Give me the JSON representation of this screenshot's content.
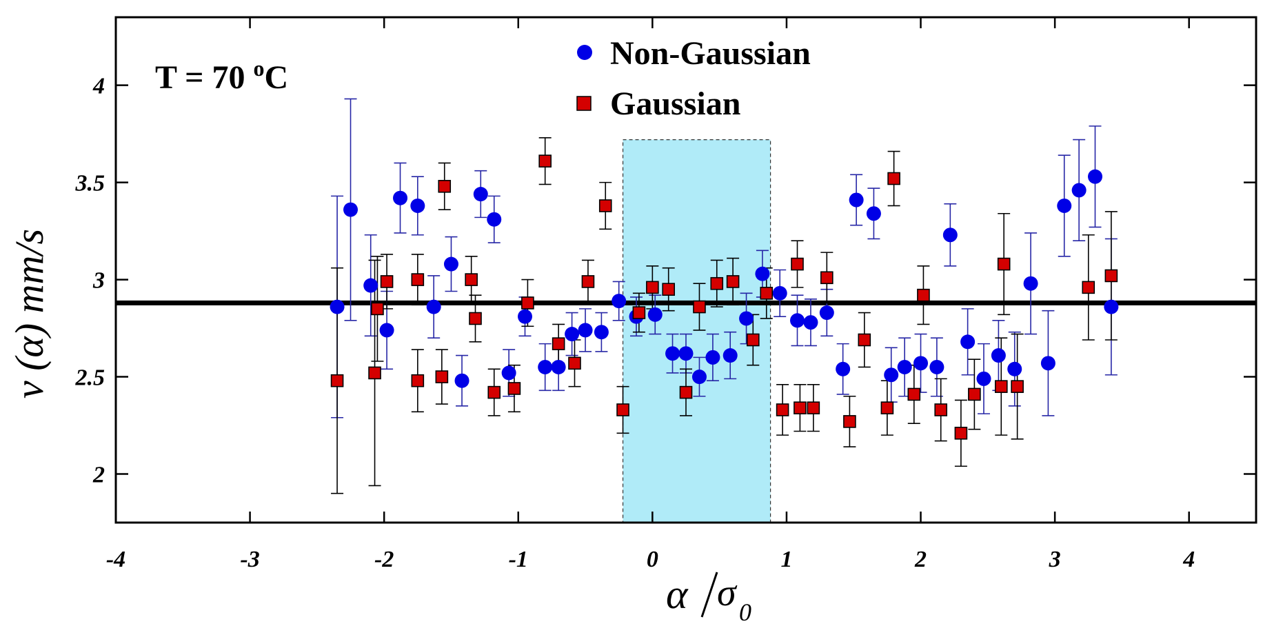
{
  "chart_data": {
    "type": "scatter",
    "title": "",
    "annotation": {
      "prefix": "T = 70 ",
      "sup": "o",
      "suffix": "C"
    },
    "xlabel": {
      "num": "α",
      "den": "σ",
      "den_sub": "0"
    },
    "ylabel": "v (α) mm/s",
    "xlim": [
      -4,
      4.5
    ],
    "ylim": [
      1.75,
      4.35
    ],
    "xticks": [
      -4,
      -3,
      -2,
      -1,
      0,
      1,
      2,
      3,
      4
    ],
    "xtick_labels": [
      "-4",
      "-3",
      "-2",
      "-1",
      "0",
      "1",
      "2",
      "3",
      "4"
    ],
    "yticks": [
      2,
      2.5,
      3,
      3.5,
      4
    ],
    "ytick_labels": [
      "2",
      "2.5",
      "3",
      "3.5",
      "4"
    ],
    "reference_line": {
      "y": 2.88
    },
    "shaded_region": {
      "x0": -0.22,
      "x1": 0.88,
      "y_top": 3.72,
      "color": "#b0ebf8"
    },
    "legend": [
      {
        "label": "Non-Gaussian",
        "marker": "circle",
        "color": "#0000e6"
      },
      {
        "label": "Gaussian",
        "marker": "square",
        "color": "#d40000"
      }
    ],
    "series": [
      {
        "name": "Non-Gaussian",
        "marker": "circle",
        "color": "#0000e6",
        "errcolor": "#2626a6",
        "points": [
          [
            -2.35,
            2.86,
            0.57
          ],
          [
            -2.25,
            3.36,
            0.57
          ],
          [
            -2.1,
            2.97,
            0.26
          ],
          [
            -1.98,
            2.74,
            0.2
          ],
          [
            -1.88,
            3.42,
            0.18
          ],
          [
            -1.75,
            3.38,
            0.15
          ],
          [
            -1.63,
            2.86,
            0.16
          ],
          [
            -1.5,
            3.08,
            0.14
          ],
          [
            -1.42,
            2.48,
            0.13
          ],
          [
            -1.28,
            3.44,
            0.12
          ],
          [
            -1.18,
            3.31,
            0.12
          ],
          [
            -1.07,
            2.52,
            0.12
          ],
          [
            -0.95,
            2.81,
            0.1
          ],
          [
            -0.8,
            2.55,
            0.12
          ],
          [
            -0.7,
            2.55,
            0.12
          ],
          [
            -0.6,
            2.72,
            0.11
          ],
          [
            -0.5,
            2.74,
            0.11
          ],
          [
            -0.38,
            2.73,
            0.1
          ],
          [
            -0.25,
            2.89,
            0.1
          ],
          [
            -0.12,
            2.81,
            0.1
          ],
          [
            0.02,
            2.82,
            0.1
          ],
          [
            0.15,
            2.62,
            0.1
          ],
          [
            0.25,
            2.62,
            0.1
          ],
          [
            0.35,
            2.5,
            0.1
          ],
          [
            0.45,
            2.6,
            0.12
          ],
          [
            0.58,
            2.61,
            0.12
          ],
          [
            0.7,
            2.8,
            0.13
          ],
          [
            0.82,
            3.03,
            0.12
          ],
          [
            0.95,
            2.93,
            0.12
          ],
          [
            1.08,
            2.79,
            0.13
          ],
          [
            1.18,
            2.78,
            0.12
          ],
          [
            1.3,
            2.83,
            0.12
          ],
          [
            1.42,
            2.54,
            0.13
          ],
          [
            1.52,
            3.41,
            0.13
          ],
          [
            1.65,
            3.34,
            0.13
          ],
          [
            1.78,
            2.51,
            0.14
          ],
          [
            1.88,
            2.55,
            0.15
          ],
          [
            2.0,
            2.57,
            0.15
          ],
          [
            2.12,
            2.55,
            0.15
          ],
          [
            2.22,
            3.23,
            0.16
          ],
          [
            2.35,
            2.68,
            0.17
          ],
          [
            2.47,
            2.49,
            0.18
          ],
          [
            2.58,
            2.61,
            0.18
          ],
          [
            2.7,
            2.54,
            0.19
          ],
          [
            2.82,
            2.98,
            0.26
          ],
          [
            2.95,
            2.57,
            0.27
          ],
          [
            3.07,
            3.38,
            0.26
          ],
          [
            3.18,
            3.46,
            0.26
          ],
          [
            3.3,
            3.53,
            0.26
          ],
          [
            3.42,
            2.86,
            0.35
          ]
        ]
      },
      {
        "name": "Gaussian",
        "marker": "square",
        "color": "#d40000",
        "errcolor": "#000000",
        "points": [
          [
            -2.35,
            2.48,
            0.58
          ],
          [
            -2.05,
            2.85,
            0.27
          ],
          [
            -2.07,
            2.52,
            0.58
          ],
          [
            -1.98,
            2.99,
            0.14
          ],
          [
            -1.75,
            3.0,
            0.13
          ],
          [
            -1.75,
            2.48,
            0.16
          ],
          [
            -1.57,
            2.5,
            0.14
          ],
          [
            -1.55,
            3.48,
            0.12
          ],
          [
            -1.35,
            3.0,
            0.12
          ],
          [
            -1.32,
            2.8,
            0.12
          ],
          [
            -1.18,
            2.42,
            0.12
          ],
          [
            -1.03,
            2.44,
            0.12
          ],
          [
            -0.93,
            2.88,
            0.12
          ],
          [
            -0.8,
            3.61,
            0.12
          ],
          [
            -0.7,
            2.67,
            0.1
          ],
          [
            -0.58,
            2.57,
            0.12
          ],
          [
            -0.48,
            2.99,
            0.11
          ],
          [
            -0.35,
            3.38,
            0.12
          ],
          [
            -0.22,
            2.33,
            0.12
          ],
          [
            -0.1,
            2.83,
            0.1
          ],
          [
            0.0,
            2.96,
            0.11
          ],
          [
            0.12,
            2.95,
            0.11
          ],
          [
            0.25,
            2.42,
            0.12
          ],
          [
            0.35,
            2.86,
            0.12
          ],
          [
            0.48,
            2.98,
            0.12
          ],
          [
            0.6,
            2.99,
            0.12
          ],
          [
            0.75,
            2.69,
            0.13
          ],
          [
            0.85,
            2.93,
            0.13
          ],
          [
            0.97,
            2.33,
            0.13
          ],
          [
            1.08,
            3.08,
            0.12
          ],
          [
            1.3,
            3.01,
            0.13
          ],
          [
            1.1,
            2.34,
            0.12
          ],
          [
            1.2,
            2.34,
            0.12
          ],
          [
            1.47,
            2.27,
            0.13
          ],
          [
            1.58,
            2.69,
            0.14
          ],
          [
            1.75,
            2.34,
            0.14
          ],
          [
            1.8,
            3.52,
            0.14
          ],
          [
            1.95,
            2.41,
            0.15
          ],
          [
            2.02,
            2.92,
            0.15
          ],
          [
            2.15,
            2.33,
            0.16
          ],
          [
            2.3,
            2.21,
            0.17
          ],
          [
            2.4,
            2.41,
            0.18
          ],
          [
            2.6,
            2.45,
            0.25
          ],
          [
            2.62,
            3.08,
            0.26
          ],
          [
            2.72,
            2.45,
            0.27
          ],
          [
            3.25,
            2.96,
            0.27
          ],
          [
            3.42,
            3.02,
            0.33
          ]
        ]
      }
    ]
  }
}
